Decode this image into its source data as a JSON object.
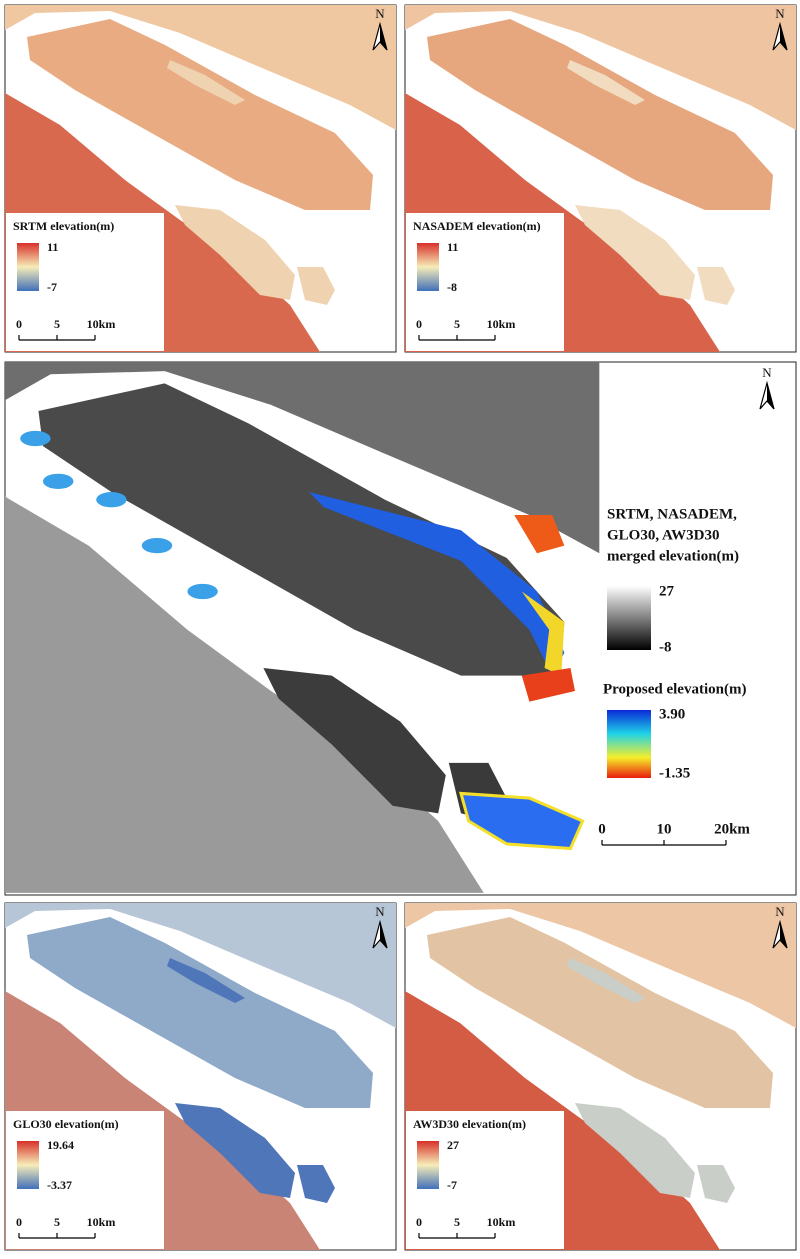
{
  "panels": [
    {
      "title": "SRTM elevation(m)",
      "max": "11",
      "min": "-7",
      "north": "N",
      "scale": [
        "0",
        "5",
        "10km"
      ]
    },
    {
      "title": "NASADEM elevation(m)",
      "max": "11",
      "min": "-8",
      "north": "N",
      "scale": [
        "0",
        "5",
        "10km"
      ]
    },
    {
      "title": "GLO30 elevation(m)",
      "max": "19.64",
      "min": "-3.37",
      "north": "N",
      "scale": [
        "0",
        "5",
        "10km"
      ]
    },
    {
      "title": "AW3D30 elevation(m)",
      "max": "27",
      "min": "-7",
      "north": "N",
      "scale": [
        "0",
        "5",
        "10km"
      ]
    }
  ],
  "main": {
    "north": "N",
    "legend1": {
      "title": [
        "SRTM, NASADEM,",
        "GLO30, AW3D30",
        "merged elevation(m)"
      ],
      "max": "27",
      "min": "-8"
    },
    "legend2": {
      "title": "Proposed elevation(m)",
      "max": "3.90",
      "min": "-1.35"
    },
    "scale": [
      "0",
      "10",
      "20km"
    ]
  }
}
